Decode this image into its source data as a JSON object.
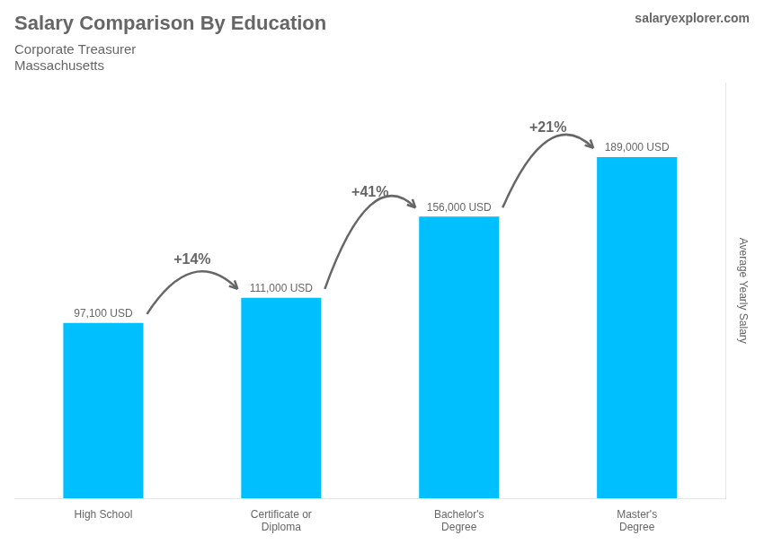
{
  "chart_data": {
    "type": "bar",
    "title": "Salary Comparison By Education",
    "subtitle": "Corporate Treasurer",
    "location": "Massachusetts",
    "brand": "salaryexplorer.com",
    "categories": [
      "High School",
      "Certificate or\nDiploma",
      "Bachelor's\nDegree",
      "Master's\nDegree"
    ],
    "values": [
      97100,
      111000,
      156000,
      189000
    ],
    "value_labels": [
      "97,100 USD",
      "111,000 USD",
      "156,000 USD",
      "189,000 USD"
    ],
    "data_labels": true,
    "annotations": [
      "+14%",
      "+41%",
      "+21%"
    ],
    "color": "#00BFFF",
    "ylabel": "Average Yearly Salary",
    "ylim": [
      0,
      230000
    ],
    "grid": false,
    "tick_labels": "x"
  }
}
